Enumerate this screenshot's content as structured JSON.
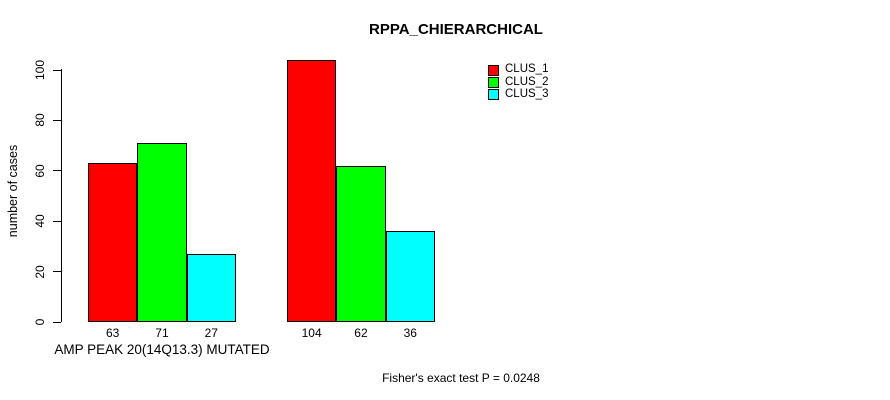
{
  "chart_data": {
    "type": "bar",
    "title": "RPPA_CHIERARCHICAL",
    "ylabel": "number of cases",
    "xlabel": "AMP PEAK 20(14Q13.3) MUTATED",
    "annotation": "Fisher's exact test P = 0.0248",
    "categories": [
      "",
      ""
    ],
    "series": [
      {
        "name": "CLUS_1",
        "color": "#ff0000",
        "values": [
          63,
          104
        ]
      },
      {
        "name": "CLUS_2",
        "color": "#00ff00",
        "values": [
          71,
          62
        ]
      },
      {
        "name": "CLUS_3",
        "color": "#00ffff",
        "values": [
          27,
          36
        ]
      }
    ],
    "yticks": [
      0,
      20,
      40,
      60,
      80,
      100
    ],
    "ylim": [
      0,
      100
    ],
    "grid": false,
    "bar_value_labels_shown": true,
    "legend_position": "upper-middle-right",
    "axis_color": "#000000",
    "background": "#ffffff"
  }
}
